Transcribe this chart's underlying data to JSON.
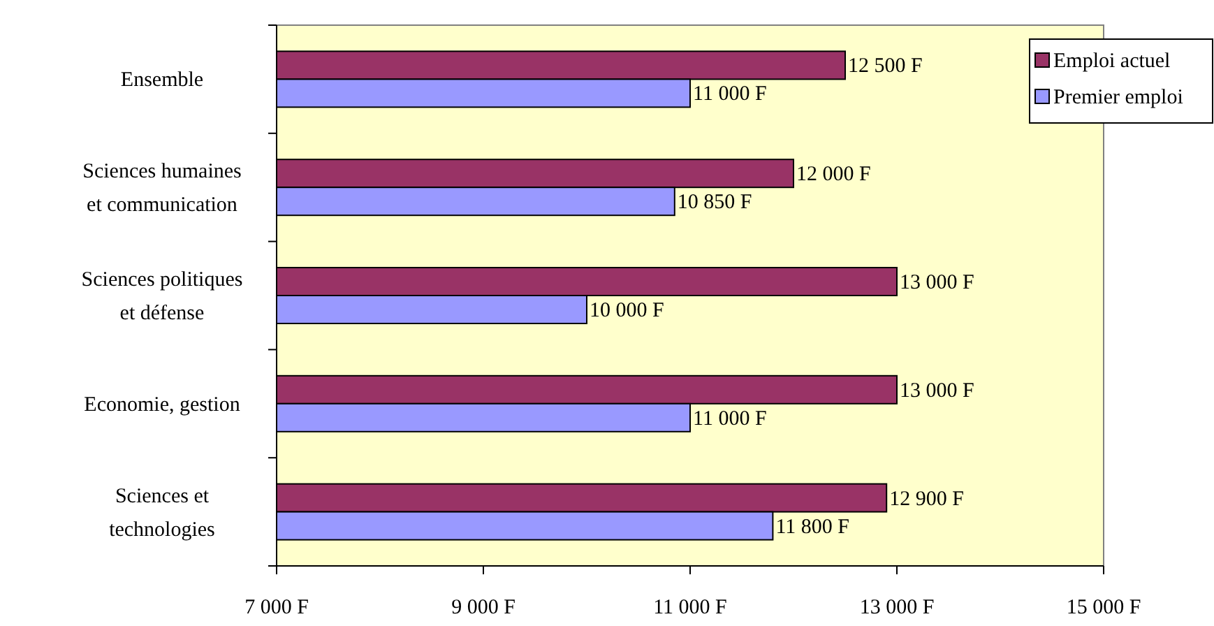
{
  "chart_data": {
    "type": "bar",
    "orientation": "horizontal",
    "categories": [
      "Ensemble",
      "Sciences humaines\net communication",
      "Sciences politiques\net défense",
      "Economie, gestion",
      "Sciences et\ntechnologies"
    ],
    "series": [
      {
        "name": "Emploi actuel",
        "color": "#993366",
        "values": [
          12500,
          12000,
          13000,
          13000,
          12900
        ],
        "value_labels": [
          "12 500 F",
          "12 000 F",
          "13 000 F",
          "13 000 F",
          "12 900 F"
        ]
      },
      {
        "name": "Premier emploi",
        "color": "#9999ff",
        "values": [
          11000,
          10850,
          10000,
          11000,
          11800
        ],
        "value_labels": [
          "11 000 F",
          "10 850 F",
          "10 000 F",
          "11 000 F",
          "11 800 F"
        ]
      }
    ],
    "xlim": [
      7000,
      15000
    ],
    "xticks": [
      {
        "value": 7000,
        "label": "7 000 F"
      },
      {
        "value": 9000,
        "label": "9 000 F"
      },
      {
        "value": 11000,
        "label": "11 000 F"
      },
      {
        "value": 13000,
        "label": "13 000 F"
      },
      {
        "value": 15000,
        "label": "15 000 F"
      }
    ],
    "legend": "top right",
    "grid": false
  }
}
